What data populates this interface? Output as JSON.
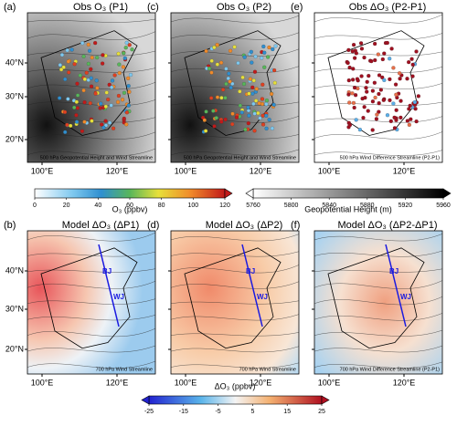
{
  "panels": [
    {
      "letter": "(a)",
      "title": "Obs O₃ (P1)",
      "note": "500 hPa Geopotential Height and Wind Streamline"
    },
    {
      "letter": "(c)",
      "title": "Obs O₃ (P2)",
      "note": "500 hPa Geopotential Height and Wind Streamline"
    },
    {
      "letter": "(e)",
      "title": "Obs ΔO₃ (P2-P1)",
      "note": "500 hPa Wind Difference Streamline (P2-P1)"
    },
    {
      "letter": "(b)",
      "title": "Model ΔO₃ (ΔP1)",
      "note": "700 hPa Wind Streamline",
      "sites": [
        "BJ",
        "WJ"
      ]
    },
    {
      "letter": "(d)",
      "title": "Model ΔO₃ (ΔP2)",
      "note": "700 hPa Wind Streamline",
      "sites": [
        "BJ",
        "WJ"
      ]
    },
    {
      "letter": "(f)",
      "title": "Model ΔO₃ (ΔP2-ΔP1)",
      "note": "700 hPa Wind Difference Streamline (P2-P1)",
      "sites": [
        "BJ",
        "WJ"
      ]
    }
  ],
  "lat_labels": [
    "40°N",
    "30°N",
    "20°N"
  ],
  "lon_labels": [
    "100°E",
    "120°E"
  ],
  "colorbars": [
    {
      "label": "O₃ (ppbv)",
      "ticks": [
        0,
        20,
        40,
        60,
        80,
        100,
        120
      ]
    },
    {
      "label": "Geopotential Height (m)",
      "ticks": [
        5760,
        5800,
        5840,
        5880,
        5920,
        5960
      ]
    },
    {
      "label": "ΔO₃ (ppbv)",
      "ticks": [
        -25,
        -15,
        -5,
        5,
        15,
        25
      ]
    }
  ]
}
